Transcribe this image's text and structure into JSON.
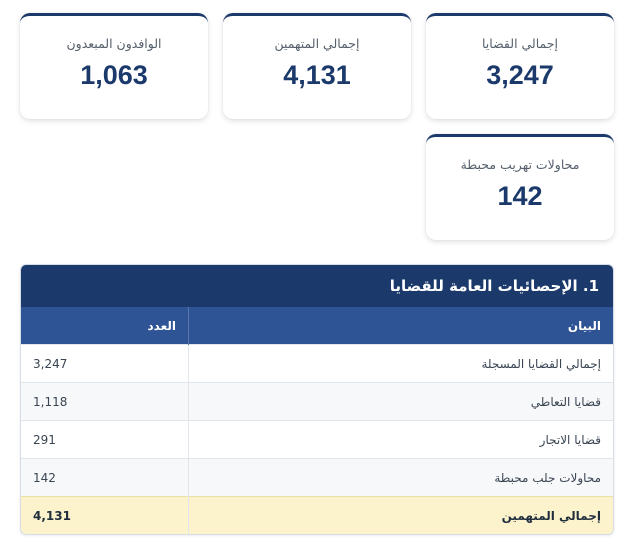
{
  "cards": [
    {
      "label": "إجمالي القضايا",
      "value": "3,247"
    },
    {
      "label": "إجمالي المتهمين",
      "value": "4,131"
    },
    {
      "label": "الوافدون المبعدون",
      "value": "1,063"
    },
    {
      "label": "محاولات تهريب محبطة",
      "value": "142"
    }
  ],
  "section": {
    "title": "1. الإحصائيات العامة للقضايا",
    "headers": {
      "label": "البيان",
      "count": "العدد"
    },
    "rows": [
      {
        "label": "إجمالي القضايا المسجلة",
        "count": "3,247"
      },
      {
        "label": "قضايا التعاطي",
        "count": "1,118"
      },
      {
        "label": "قضايا الاتجار",
        "count": "291"
      },
      {
        "label": "محاولات جلب محبطة",
        "count": "142"
      }
    ],
    "total": {
      "label": "إجمالي المتهمين",
      "count": "4,131"
    }
  }
}
